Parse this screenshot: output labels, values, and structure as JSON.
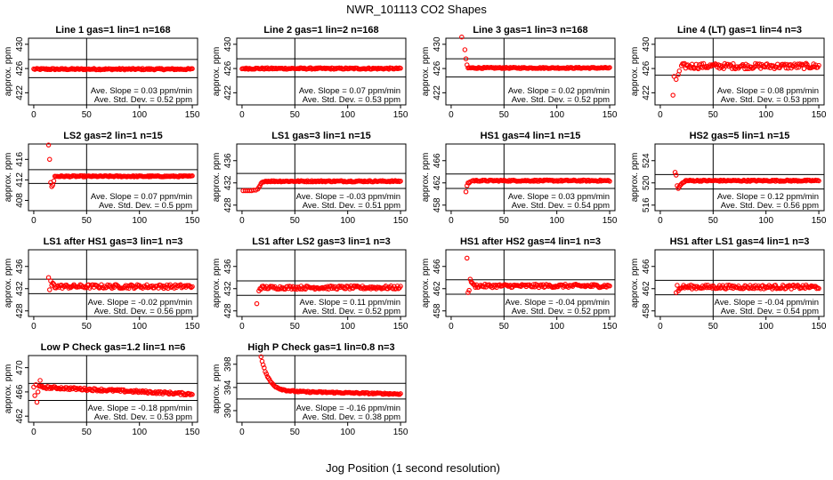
{
  "figure_title": "NWR_101113  CO2 Shapes",
  "x_axis_label": "Jog Position (1 second resolution)",
  "y_axis_label": "approx. ppm",
  "slope_prefix": "Ave. Slope = ",
  "slope_unit": "ppm/min",
  "sd_prefix": "Ave. Std. Dev. = ",
  "sd_unit": "ppm",
  "colors": {
    "points": "#ff0000",
    "axes": "#000000",
    "background": "#ffffff"
  },
  "chart_data": [
    {
      "type": "scatter",
      "title": "Line 1 gas=1 lin=1 n=168",
      "xlim": [
        -5,
        155
      ],
      "ylim": [
        420,
        431
      ],
      "yticks": [
        422,
        426,
        430
      ],
      "xticks": [
        0,
        50,
        100,
        150
      ],
      "hlines": [
        427.5,
        424.5
      ],
      "vline": 50,
      "slope": "0.03",
      "sd": "0.52",
      "series": [
        {
          "start": 0,
          "end": 150,
          "base": 425.9,
          "noise": 0.12,
          "initial": []
        }
      ]
    },
    {
      "type": "scatter",
      "title": "Line 2 gas=1 lin=2 n=168",
      "xlim": [
        -5,
        155
      ],
      "ylim": [
        420,
        431
      ],
      "yticks": [
        422,
        426,
        430
      ],
      "xticks": [
        0,
        50,
        100,
        150
      ],
      "hlines": [
        427.6,
        424.6
      ],
      "vline": 50,
      "slope": "0.07",
      "sd": "0.53",
      "series": [
        {
          "start": 0,
          "end": 150,
          "base": 426.0,
          "noise": 0.12,
          "initial": []
        }
      ]
    },
    {
      "type": "scatter",
      "title": "Line 3 gas=1 lin=3 n=168",
      "xlim": [
        -5,
        155
      ],
      "ylim": [
        420,
        431
      ],
      "yticks": [
        422,
        426,
        430
      ],
      "xticks": [
        0,
        50,
        100,
        150
      ],
      "hlines": [
        427.6,
        424.6
      ],
      "vline": 50,
      "slope": "0.02",
      "sd": "0.52",
      "series": [
        {
          "start": 16,
          "end": 150,
          "base": 426.1,
          "noise": 0.1,
          "initial": [
            [
              10,
              431.2
            ],
            [
              13,
              429.1
            ],
            [
              14,
              427.6
            ],
            [
              15,
              426.6
            ]
          ]
        }
      ]
    },
    {
      "type": "scatter",
      "title": "Line 4 (LT) gas=1 lin=4 n=3",
      "xlim": [
        -5,
        155
      ],
      "ylim": [
        420,
        431
      ],
      "yticks": [
        422,
        426,
        430
      ],
      "xticks": [
        0,
        50,
        100,
        150
      ],
      "hlines": [
        427.9,
        424.9
      ],
      "vline": 50,
      "slope": "0.08",
      "sd": "0.53",
      "series": [
        {
          "start": 20,
          "end": 150,
          "base": 426.4,
          "noise": 0.45,
          "initial": [
            [
              12,
              421.6
            ],
            [
              13,
              424.7
            ],
            [
              15,
              424.2
            ],
            [
              17,
              425.0
            ],
            [
              18,
              425.6
            ]
          ]
        }
      ]
    },
    {
      "type": "scatter",
      "title": "LS2 gas=2 lin=1 n=15",
      "xlim": [
        -5,
        155
      ],
      "ylim": [
        406,
        419
      ],
      "yticks": [
        408,
        412,
        416
      ],
      "xticks": [
        0,
        50,
        100,
        150
      ],
      "hlines": [
        414.0,
        411.3
      ],
      "vline": 50,
      "slope": "0.07",
      "sd": "0.5",
      "series": [
        {
          "start": 20,
          "end": 150,
          "base": 412.7,
          "noise": 0.12,
          "initial": [
            [
              14,
              418.8
            ],
            [
              15,
              416.0
            ],
            [
              16,
              411.5
            ],
            [
              17,
              410.7
            ],
            [
              18,
              411.0
            ],
            [
              19,
              411.8
            ]
          ]
        }
      ]
    },
    {
      "type": "scatter",
      "title": "LS1 gas=3 lin=1 n=15",
      "xlim": [
        -5,
        155
      ],
      "ylim": [
        427,
        439
      ],
      "yticks": [
        428,
        432,
        436
      ],
      "xticks": [
        0,
        50,
        100,
        150
      ],
      "hlines": [
        433.7,
        431.0
      ],
      "vline": 50,
      "slope": "-0.03",
      "sd": "0.51",
      "series": [
        {
          "start": 20,
          "end": 150,
          "base": 432.3,
          "noise": 0.12,
          "initial": [
            [
              1,
              430.6
            ],
            [
              3,
              430.6
            ],
            [
              5,
              430.6
            ],
            [
              7,
              430.6
            ],
            [
              9,
              430.6
            ],
            [
              11,
              430.7
            ],
            [
              13,
              430.7
            ],
            [
              15,
              430.9
            ],
            [
              16,
              431.2
            ],
            [
              17,
              431.5
            ],
            [
              18,
              431.9
            ],
            [
              19,
              432.1
            ]
          ]
        }
      ]
    },
    {
      "type": "scatter",
      "title": "HS1 gas=4 lin=1 n=15",
      "xlim": [
        -5,
        155
      ],
      "ylim": [
        457,
        469
      ],
      "yticks": [
        458,
        462,
        466
      ],
      "xticks": [
        0,
        50,
        100,
        150
      ],
      "hlines": [
        463.6,
        461.0
      ],
      "vline": 50,
      "slope": "0.03",
      "sd": "0.54",
      "series": [
        {
          "start": 20,
          "end": 150,
          "base": 462.4,
          "noise": 0.12,
          "initial": [
            [
              14,
              460.4
            ],
            [
              15,
              461.5
            ],
            [
              16,
              462.0
            ],
            [
              17,
              462.0
            ],
            [
              18,
              462.2
            ]
          ]
        }
      ]
    },
    {
      "type": "scatter",
      "title": "HS2 gas=5 lin=1 n=15",
      "xlim": [
        -5,
        155
      ],
      "ylim": [
        515,
        527
      ],
      "yticks": [
        516,
        520,
        524
      ],
      "xticks": [
        0,
        50,
        100,
        150
      ],
      "hlines": [
        521.5,
        518.9
      ],
      "vline": 50,
      "slope": "0.12",
      "sd": "0.56",
      "series": [
        {
          "start": 24,
          "end": 150,
          "base": 520.4,
          "noise": 0.12,
          "initial": [
            [
              14,
              521.9
            ],
            [
              15,
              521.4
            ],
            [
              16,
              519.5
            ],
            [
              17,
              519.0
            ],
            [
              18,
              519.3
            ],
            [
              19,
              519.6
            ],
            [
              20,
              519.8
            ],
            [
              21,
              520.0
            ],
            [
              22,
              520.1
            ],
            [
              23,
              520.2
            ]
          ]
        }
      ]
    },
    {
      "type": "scatter",
      "title": "LS1 after HS1 gas=3 lin=1 n=3",
      "xlim": [
        -5,
        155
      ],
      "ylim": [
        427,
        439
      ],
      "yticks": [
        428,
        432,
        436
      ],
      "xticks": [
        0,
        50,
        100,
        150
      ],
      "hlines": [
        433.7,
        431.1
      ],
      "vline": 50,
      "slope": "-0.02",
      "sd": "0.56",
      "series": [
        {
          "start": 20,
          "end": 150,
          "base": 432.4,
          "noise": 0.35,
          "initial": [
            [
              14,
              434.0
            ],
            [
              15,
              431.8
            ],
            [
              16,
              433.4
            ],
            [
              17,
              432.6
            ],
            [
              18,
              433.0
            ],
            [
              19,
              432.8
            ]
          ]
        }
      ]
    },
    {
      "type": "scatter",
      "title": "LS1 after LS2 gas=3 lin=1 n=3",
      "xlim": [
        -5,
        155
      ],
      "ylim": [
        427,
        439
      ],
      "yticks": [
        428,
        432,
        436
      ],
      "xticks": [
        0,
        50,
        100,
        150
      ],
      "hlines": [
        433.4,
        430.8
      ],
      "vline": 50,
      "slope": "0.11",
      "sd": "0.52",
      "series": [
        {
          "start": 18,
          "end": 150,
          "base": 432.2,
          "noise": 0.3,
          "initial": [
            [
              14,
              429.3
            ],
            [
              16,
              431.6
            ],
            [
              17,
              432.0
            ]
          ]
        }
      ]
    },
    {
      "type": "scatter",
      "title": "HS1 after HS2 gas=4 lin=1 n=3",
      "xlim": [
        -5,
        155
      ],
      "ylim": [
        457,
        469
      ],
      "yticks": [
        458,
        462,
        466
      ],
      "xticks": [
        0,
        50,
        100,
        150
      ],
      "hlines": [
        463.6,
        461.0
      ],
      "vline": 50,
      "slope": "-0.04",
      "sd": "0.52",
      "series": [
        {
          "start": 22,
          "end": 150,
          "base": 462.5,
          "noise": 0.3,
          "initial": [
            [
              15,
              467.5
            ],
            [
              16,
              461.3
            ],
            [
              17,
              461.7
            ],
            [
              18,
              463.7
            ],
            [
              19,
              463.2
            ],
            [
              20,
              463.0
            ],
            [
              21,
              462.8
            ]
          ]
        }
      ]
    },
    {
      "type": "scatter",
      "title": "HS1 after LS1 gas=4 lin=1 n=3",
      "xlim": [
        -5,
        155
      ],
      "ylim": [
        457,
        469
      ],
      "yticks": [
        458,
        462,
        466
      ],
      "xticks": [
        0,
        50,
        100,
        150
      ],
      "hlines": [
        463.5,
        460.9
      ],
      "vline": 50,
      "slope": "-0.04",
      "sd": "0.54",
      "series": [
        {
          "start": 20,
          "end": 150,
          "base": 462.3,
          "noise": 0.35,
          "initial": [
            [
              15,
              461.3
            ],
            [
              16,
              462.6
            ],
            [
              17,
              461.6
            ],
            [
              18,
              462.0
            ],
            [
              19,
              462.0
            ]
          ]
        }
      ]
    },
    {
      "type": "scatter",
      "title": "Low P Check gas=1.2 lin=1 n=6",
      "xlim": [
        -5,
        155
      ],
      "ylim": [
        461,
        472
      ],
      "yticks": [
        462,
        466,
        470
      ],
      "xticks": [
        0,
        50,
        100,
        150
      ],
      "hlines": [
        467.4,
        464.6
      ],
      "vline": 50,
      "slope": "-0.18",
      "sd": "0.53",
      "series": [
        {
          "start": 5,
          "end": 150,
          "base": 466.8,
          "noise": 0.2,
          "slope": -0.008,
          "initial": [
            [
              0,
              466.8
            ],
            [
              1,
              465.4
            ],
            [
              2,
              467.2
            ],
            [
              3,
              464.3
            ],
            [
              4,
              466.0
            ],
            [
              6,
              467.9
            ]
          ]
        }
      ]
    },
    {
      "type": "scatter",
      "title": "High P Check gas=1 lin=0.8 n=3",
      "xlim": [
        -5,
        155
      ],
      "ylim": [
        388,
        399.5
      ],
      "yticks": [
        390,
        394,
        398
      ],
      "xticks": [
        0,
        50,
        100,
        150
      ],
      "hlines": [
        394.7,
        392.0
      ],
      "vline": 50,
      "slope": "-0.16",
      "sd": "0.38",
      "series": [
        {
          "start": 18,
          "end": 150,
          "base": 393.4,
          "noise": 0.12,
          "slope": -0.004,
          "decay": {
            "amp": 6.0,
            "tau": 7
          },
          "initial": []
        }
      ]
    }
  ]
}
